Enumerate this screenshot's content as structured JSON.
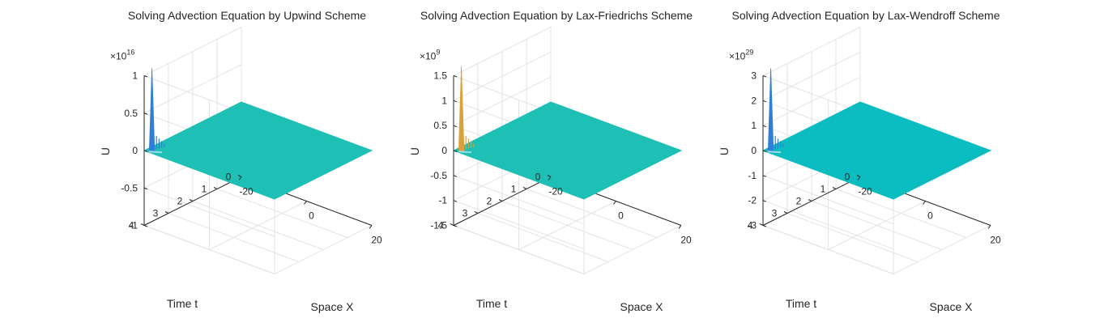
{
  "chart_data": [
    {
      "type": "surface",
      "title": "Solving Advection Equation by Upwind Scheme",
      "xlabel": "Space X",
      "ylabel": "Time t",
      "zlabel": "U",
      "xlim": [
        -20,
        20
      ],
      "ylim": [
        0,
        4
      ],
      "zlim": [
        -1,
        1
      ],
      "x_ticks": [
        "-20",
        "0",
        "20"
      ],
      "y_ticks": [
        "0",
        "1",
        "2",
        "3",
        "4"
      ],
      "z_ticks": [
        "-1",
        "-0.5",
        "0",
        "0.5",
        "1"
      ],
      "z_multiplier_base": "×10",
      "z_multiplier_exp": "16",
      "surface_color": "#1ebfb4",
      "spike_color": "#2f7fd8",
      "spike": {
        "x": -18.5,
        "t": 4,
        "peak": 1.1
      },
      "grid": true
    },
    {
      "type": "surface",
      "title": "Solving Advection Equation by Lax-Friedrichs Scheme",
      "xlabel": "Space X",
      "ylabel": "Time t",
      "zlabel": "U",
      "xlim": [
        -20,
        20
      ],
      "ylim": [
        0,
        4
      ],
      "zlim": [
        -1.5,
        1.5
      ],
      "x_ticks": [
        "-20",
        "0",
        "20"
      ],
      "y_ticks": [
        "0",
        "1",
        "2",
        "3",
        "4"
      ],
      "z_ticks": [
        "-1.5",
        "-1",
        "-0.5",
        "0",
        "0.5",
        "1",
        "1.5"
      ],
      "z_multiplier_base": "×10",
      "z_multiplier_exp": "9",
      "surface_color": "#1ebfb4",
      "spike_color": "#d9a23a",
      "spike": {
        "x": -18.5,
        "t": 4,
        "peak": 1.7
      },
      "grid": true
    },
    {
      "type": "surface",
      "title": "Solving Advection Equation by Lax-Wendroff Scheme",
      "xlabel": "Space X",
      "ylabel": "Time t",
      "zlabel": "U",
      "xlim": [
        -20,
        20
      ],
      "ylim": [
        0,
        4
      ],
      "zlim": [
        -3,
        3
      ],
      "x_ticks": [
        "-20",
        "0",
        "20"
      ],
      "y_ticks": [
        "0",
        "1",
        "2",
        "3",
        "4"
      ],
      "z_ticks": [
        "-3",
        "-2",
        "-1",
        "0",
        "1",
        "2",
        "3"
      ],
      "z_multiplier_base": "×10",
      "z_multiplier_exp": "29",
      "surface_color": "#0bbcc0",
      "spike_color": "#2f7fd8",
      "spike": {
        "x": -18.5,
        "t": 4,
        "peak": 3.3
      },
      "grid": true
    }
  ]
}
